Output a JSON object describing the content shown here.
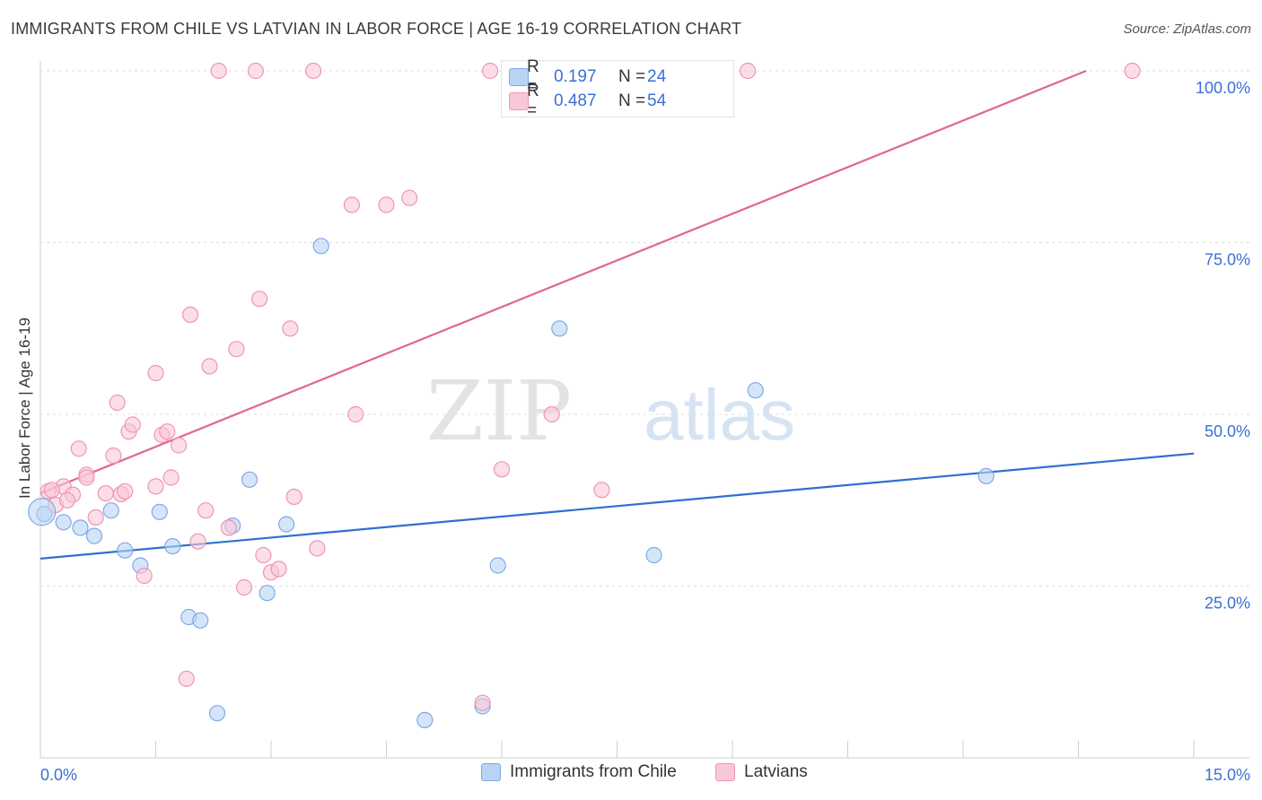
{
  "title": "IMMIGRANTS FROM CHILE VS LATVIAN IN LABOR FORCE | AGE 16-19 CORRELATION CHART",
  "source": "Source: ZipAtlas.com",
  "watermark": {
    "zip": "ZIP",
    "atlas": "atlas"
  },
  "colors": {
    "blue_fill": "#b9d3f5",
    "blue_stroke": "#7fa9e6",
    "blue_line": "#2f6fd1",
    "pink_fill": "#f9c8d7",
    "pink_stroke": "#f095b2",
    "pink_line": "#e0668f",
    "axis_text": "#3a6fd8",
    "grid": "#dddddd"
  },
  "legend": {
    "rows": [
      {
        "label": "R =",
        "r": "0.197",
        "n_label": "N =",
        "n": "24",
        "series": "chile"
      },
      {
        "label": "R =",
        "r": "0.487",
        "n_label": "N =",
        "n": "54",
        "series": "latvian"
      }
    ]
  },
  "chart_data": {
    "type": "scatter",
    "title": "IMMIGRANTS FROM CHILE VS LATVIAN IN LABOR FORCE | AGE 16-19 CORRELATION CHART",
    "xlabel": "",
    "ylabel": "In Labor Force | Age 16-19",
    "xlim": [
      0,
      15
    ],
    "ylim": [
      0,
      100
    ],
    "x_tick_labels": [
      "0.0%",
      "15.0%"
    ],
    "y_tick_labels": [
      "25.0%",
      "50.0%",
      "75.0%",
      "100.0%"
    ],
    "y_ticks": [
      25,
      50,
      75,
      100
    ],
    "grid": true,
    "series": [
      {
        "name": "Immigrants from Chile",
        "color": "blue",
        "points": [
          [
            0.05,
            35.5
          ],
          [
            0.3,
            34.3
          ],
          [
            0.52,
            33.5
          ],
          [
            0.7,
            32.3
          ],
          [
            0.92,
            36.0
          ],
          [
            1.1,
            30.2
          ],
          [
            1.3,
            28.0
          ],
          [
            1.55,
            35.8
          ],
          [
            1.72,
            30.8
          ],
          [
            1.93,
            20.5
          ],
          [
            2.08,
            20.0
          ],
          [
            2.3,
            6.5
          ],
          [
            2.5,
            33.8
          ],
          [
            2.72,
            40.5
          ],
          [
            2.95,
            24.0
          ],
          [
            3.2,
            34.0
          ],
          [
            3.65,
            74.5
          ],
          [
            5.0,
            5.5
          ],
          [
            5.95,
            28.0
          ],
          [
            5.75,
            7.5
          ],
          [
            6.75,
            62.5
          ],
          [
            7.98,
            29.5
          ],
          [
            9.3,
            53.5
          ],
          [
            12.3,
            41.0
          ]
        ],
        "trend": [
          [
            0,
            29.0
          ],
          [
            15,
            44.3
          ]
        ]
      },
      {
        "name": "Latvians",
        "color": "pink",
        "points": [
          [
            0.1,
            38.8
          ],
          [
            0.2,
            36.8
          ],
          [
            0.3,
            39.5
          ],
          [
            0.42,
            38.3
          ],
          [
            0.5,
            45.0
          ],
          [
            0.6,
            41.2
          ],
          [
            0.72,
            35.0
          ],
          [
            0.85,
            38.5
          ],
          [
            0.95,
            44.0
          ],
          [
            1.0,
            51.7
          ],
          [
            1.05,
            38.4
          ],
          [
            1.15,
            47.5
          ],
          [
            1.2,
            48.5
          ],
          [
            1.35,
            26.5
          ],
          [
            1.5,
            56.0
          ],
          [
            1.5,
            39.5
          ],
          [
            1.58,
            47.0
          ],
          [
            1.65,
            47.5
          ],
          [
            1.7,
            40.8
          ],
          [
            1.8,
            45.5
          ],
          [
            1.9,
            11.5
          ],
          [
            1.95,
            64.5
          ],
          [
            2.05,
            31.5
          ],
          [
            2.15,
            36.0
          ],
          [
            2.2,
            57.0
          ],
          [
            2.32,
            100
          ],
          [
            2.45,
            33.5
          ],
          [
            2.55,
            59.5
          ],
          [
            2.65,
            24.8
          ],
          [
            2.8,
            100
          ],
          [
            2.85,
            66.8
          ],
          [
            2.9,
            29.5
          ],
          [
            3.0,
            27.0
          ],
          [
            3.1,
            27.5
          ],
          [
            3.25,
            62.5
          ],
          [
            3.3,
            38.0
          ],
          [
            3.55,
            100
          ],
          [
            3.6,
            30.5
          ],
          [
            4.05,
            80.5
          ],
          [
            4.1,
            50.0
          ],
          [
            4.5,
            80.5
          ],
          [
            4.8,
            81.5
          ],
          [
            5.75,
            8.0
          ],
          [
            5.85,
            100
          ],
          [
            6.0,
            42.0
          ],
          [
            6.4,
            100
          ],
          [
            6.65,
            50.0
          ],
          [
            7.3,
            39.0
          ],
          [
            9.2,
            100
          ],
          [
            14.2,
            100
          ],
          [
            0.15,
            39.0
          ],
          [
            0.35,
            37.5
          ],
          [
            0.6,
            40.8
          ],
          [
            1.1,
            38.8
          ]
        ],
        "trend": [
          [
            0,
            38.5
          ],
          [
            13.6,
            100
          ]
        ]
      }
    ]
  },
  "bottom_legend": [
    {
      "label": "Immigrants from Chile",
      "series": "chile"
    },
    {
      "label": "Latvians",
      "series": "latvian"
    }
  ]
}
